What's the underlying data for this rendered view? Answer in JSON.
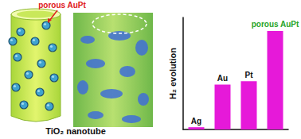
{
  "chart_data": {
    "type": "bar",
    "ylabel": "H₂ evolution",
    "categories": [
      "Ag",
      "Au",
      "Pt",
      "porous AuPt"
    ],
    "values": [
      2,
      40,
      43,
      88
    ],
    "color": "#e619d9",
    "ylim": [
      0,
      100
    ],
    "tick_labels": "x"
  },
  "illustration": {
    "callout": "porous AuPt",
    "caption": "TiO₂ nanotube"
  }
}
